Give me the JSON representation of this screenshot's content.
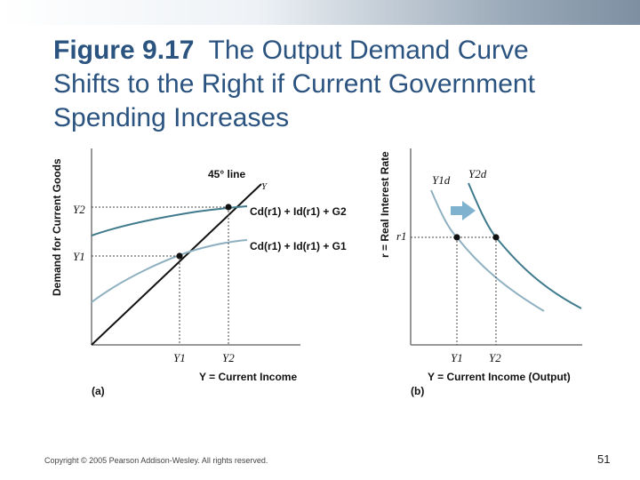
{
  "title": {
    "figure_label": "Figure 9.17",
    "line1_rest": "The Output Demand Curve",
    "line2": "Shifts to the Right if Current Government",
    "line3": "Spending Increases"
  },
  "panel_a": {
    "y_axis_label": "Demand for Current Goods",
    "x_axis_label": "Y = Current Income",
    "panel_tag": "(a)",
    "line_45_label": "45° line",
    "line_45_y": "Y",
    "curve_upper": "Cd(r1) + Id(r1) + G2",
    "curve_lower": "Cd(r1) + Id(r1) + G1",
    "tick_y2": "Y2",
    "tick_y1": "Y1",
    "tick_x1": "Y1",
    "tick_x2": "Y2"
  },
  "panel_b": {
    "y_axis_label": "r = Real Interest Rate",
    "x_axis_label": "Y = Current Income (Output)",
    "panel_tag": "(b)",
    "curve1_label": "Y1d",
    "curve2_label": "Y2d",
    "tick_r1": "r1",
    "tick_x1": "Y1",
    "tick_x2": "Y2"
  },
  "colors": {
    "title": "#2b5380",
    "curve_light": "#8fb0c0",
    "curve_dark": "#3f7a8c",
    "arrow": "#7fb2cf"
  },
  "footer": {
    "copyright": "Copyright © 2005 Pearson Addison-Wesley. All rights reserved.",
    "page_number": "51"
  }
}
